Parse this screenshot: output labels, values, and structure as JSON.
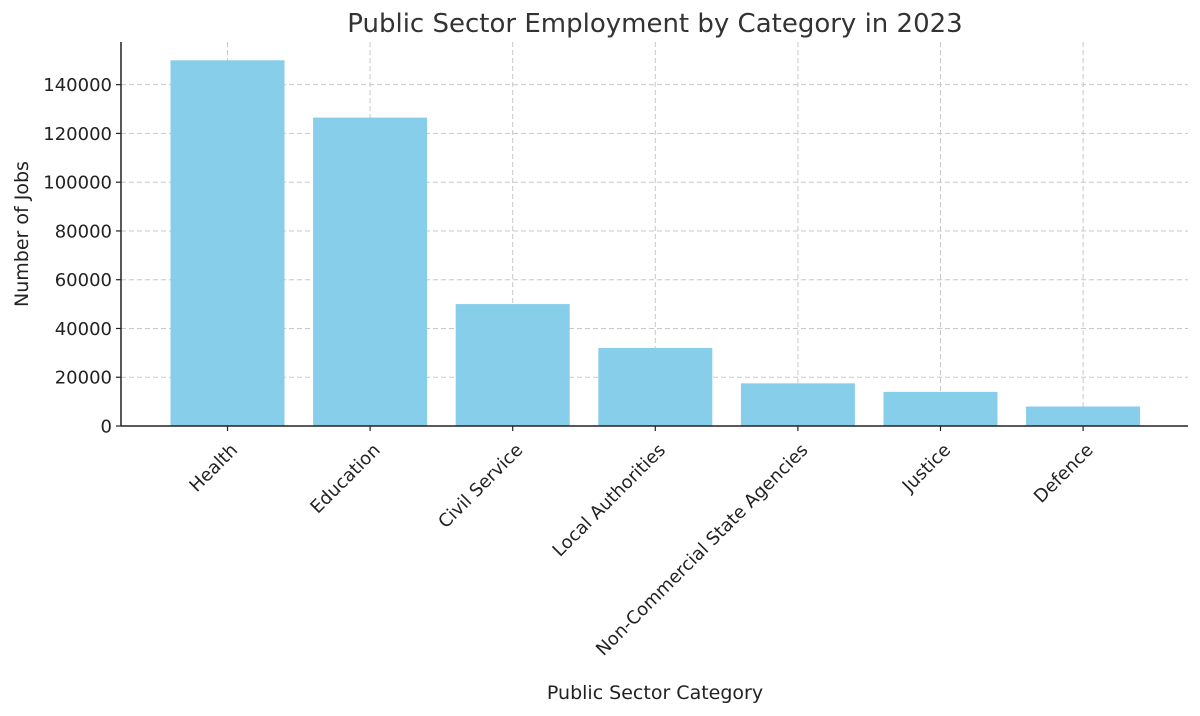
{
  "chart_data": {
    "type": "bar",
    "title": "Public Sector Employment by Category in 2023",
    "xlabel": "Public Sector Category",
    "ylabel": "Number of Jobs",
    "categories": [
      "Health",
      "Education",
      "Civil Service",
      "Local Authorities",
      "Non-Commercial State Agencies",
      "Justice",
      "Defence"
    ],
    "values": [
      150000,
      126500,
      50000,
      32000,
      17500,
      14000,
      8000
    ],
    "yticks": [
      0,
      20000,
      40000,
      60000,
      80000,
      100000,
      120000,
      140000
    ],
    "ylim": [
      0,
      157500
    ],
    "grid": true,
    "bar_color": "#87ceeb"
  }
}
